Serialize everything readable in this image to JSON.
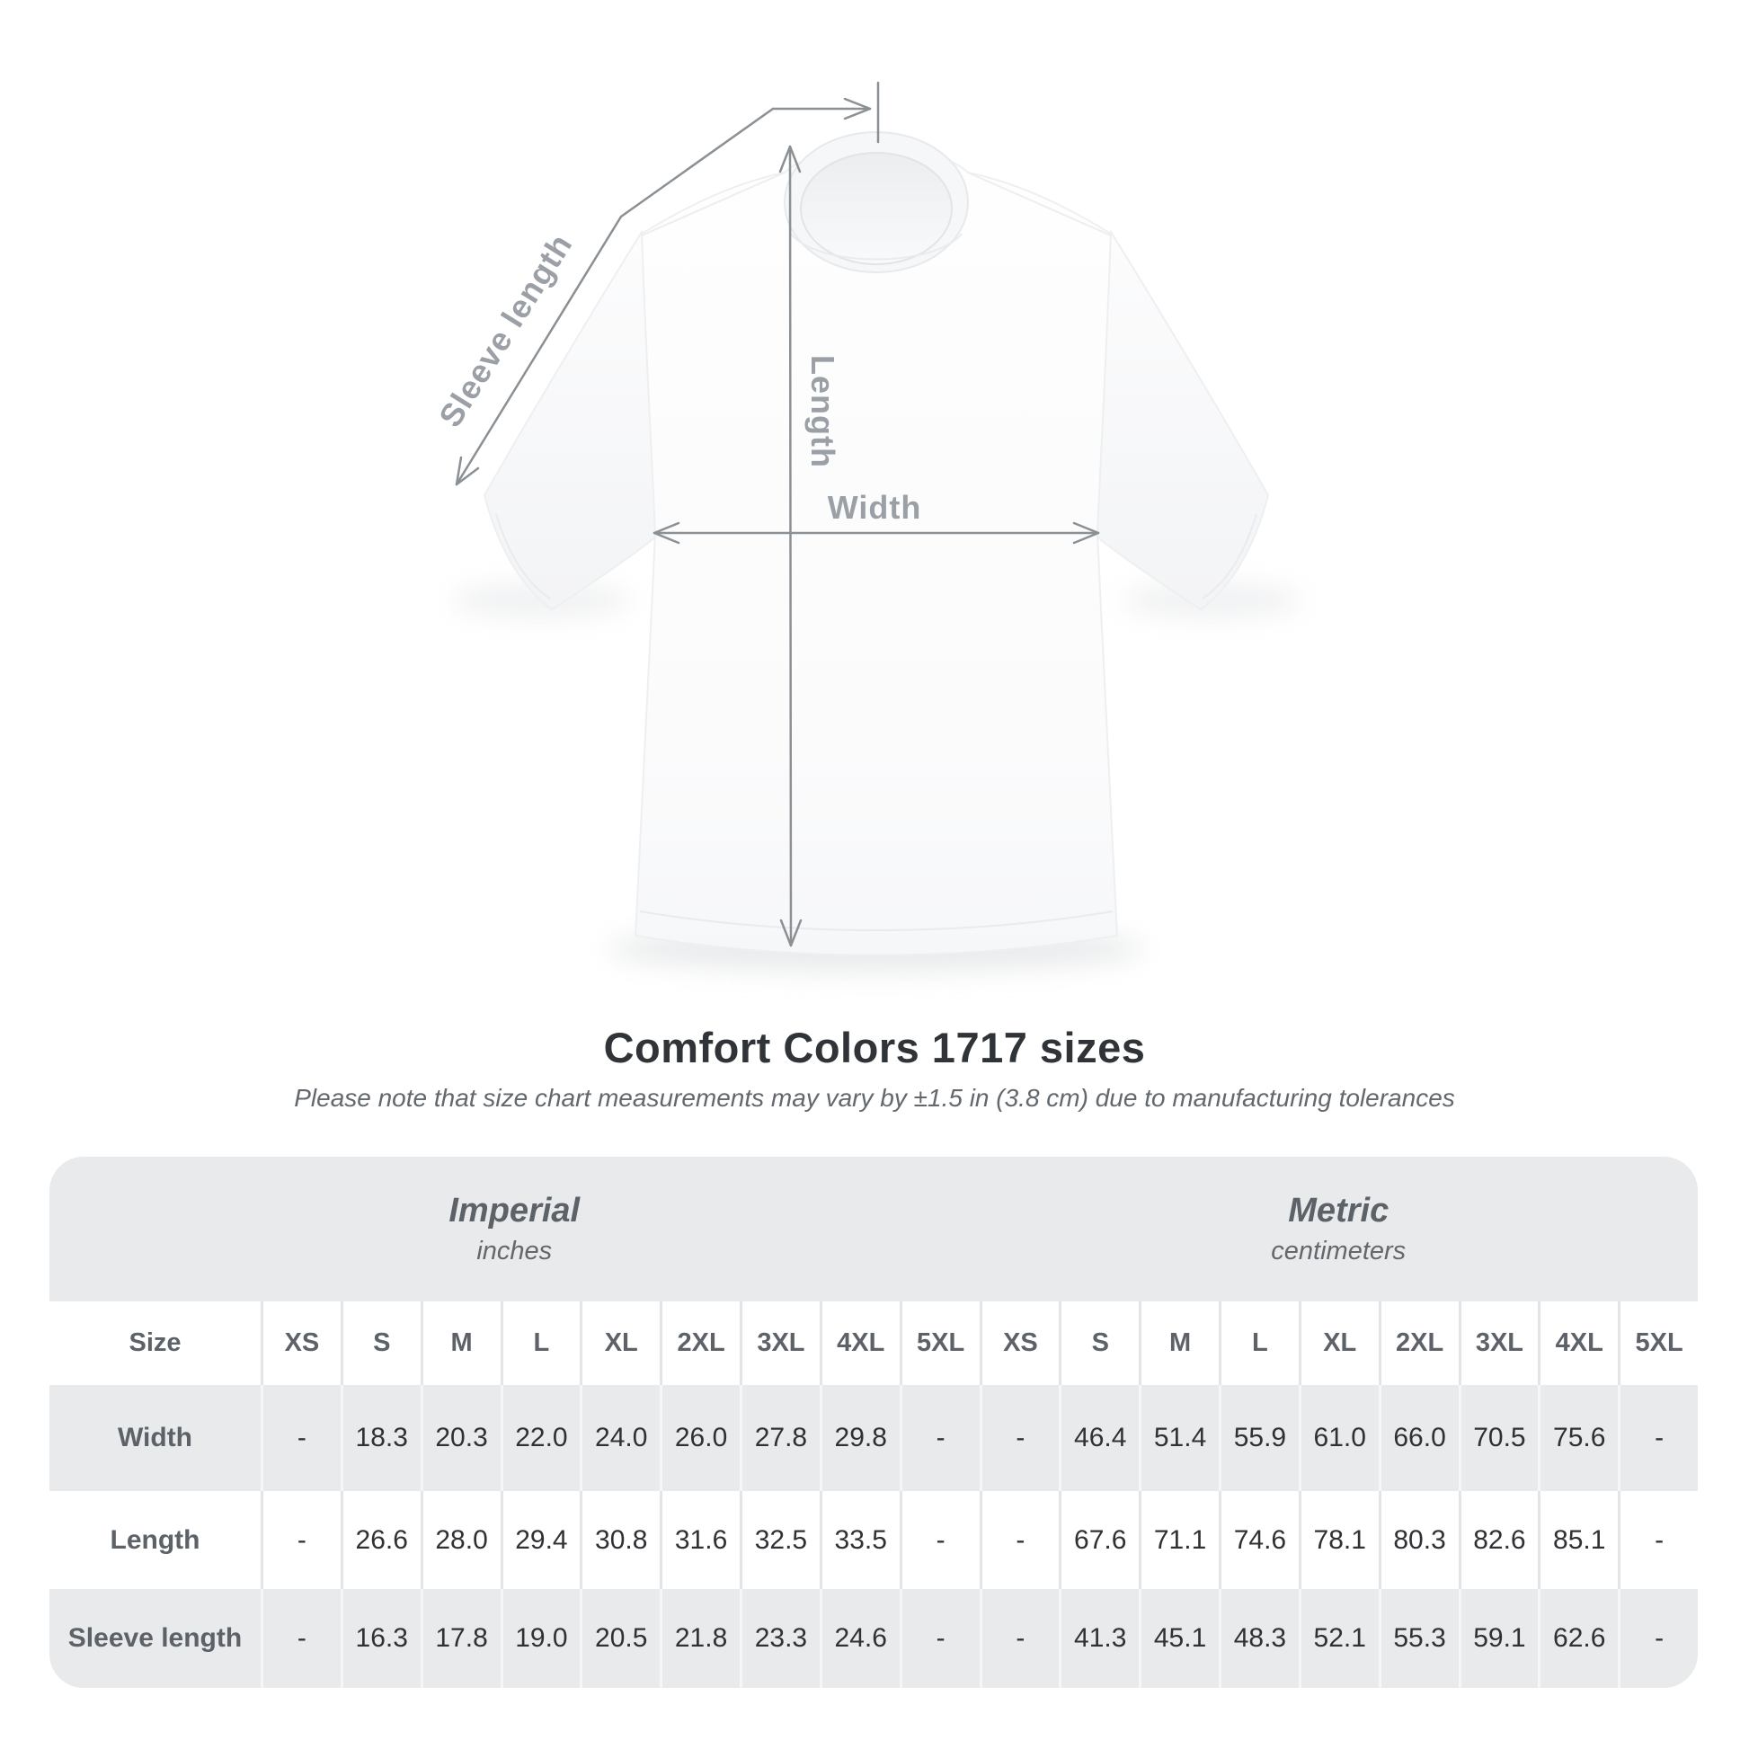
{
  "diagram": {
    "sleeve_label": "Sleeve length",
    "length_label": "Length",
    "width_label": "Width"
  },
  "title": "Comfort Colors 1717 sizes",
  "subtitle": "Please note that size chart measurements may vary by ±1.5 in (3.8 cm) due to manufacturing tolerances",
  "table": {
    "groups": [
      {
        "label": "Imperial",
        "unit": "inches"
      },
      {
        "label": "Metric",
        "unit": "centimeters"
      }
    ],
    "size_column_header": "Size",
    "sizes": [
      "XS",
      "S",
      "M",
      "L",
      "XL",
      "2XL",
      "3XL",
      "4XL",
      "5XL"
    ],
    "rows": [
      {
        "label": "Width",
        "imperial": [
          "-",
          "18.3",
          "20.3",
          "22.0",
          "24.0",
          "26.0",
          "27.8",
          "29.8",
          "-"
        ],
        "metric": [
          "-",
          "46.4",
          "51.4",
          "55.9",
          "61.0",
          "66.0",
          "70.5",
          "75.6",
          "-"
        ]
      },
      {
        "label": "Length",
        "imperial": [
          "-",
          "26.6",
          "28.0",
          "29.4",
          "30.8",
          "31.6",
          "32.5",
          "33.5",
          "-"
        ],
        "metric": [
          "-",
          "67.6",
          "71.1",
          "74.6",
          "78.1",
          "80.3",
          "82.6",
          "85.1",
          "-"
        ]
      },
      {
        "label": "Sleeve length",
        "imperial": [
          "-",
          "16.3",
          "17.8",
          "19.0",
          "20.5",
          "21.8",
          "23.3",
          "24.6",
          "-"
        ],
        "metric": [
          "-",
          "41.3",
          "45.1",
          "48.3",
          "52.1",
          "55.3",
          "59.1",
          "62.6",
          "-"
        ]
      }
    ]
  },
  "colors": {
    "arrow": "#8b9095",
    "diagram_label": "#9aa0a5",
    "title_text": "#303438",
    "subtitle_text": "#63686d",
    "table_bg": "#e9eaeb",
    "header_text": "#5c6268",
    "value_text": "#2f3134"
  }
}
